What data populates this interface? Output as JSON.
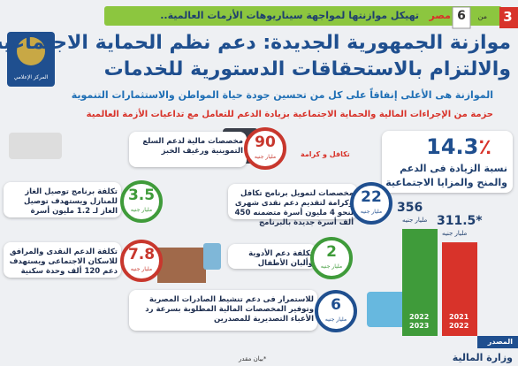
{
  "header": {
    "page": "3",
    "of": "من",
    "total": "6",
    "banner_country": "مصر",
    "banner": "تهيكل موازنتها لمواجهة سيناريوهات الأزمات العالمية..",
    "title_line1": "موازنة الجمهورية الجديدة: دعم نظم الحماية الاجتماعية",
    "title_line2": "والالتزام بالاستحقاقات الدستورية للخدمات",
    "logo": "المركز الإعلامي"
  },
  "subtitles": [
    "الموازنة هى الأعلى إنفاقاً على كل من تحسين جودة حياة المواطن والاستثمارات التنموية",
    "حزمة من الإجراءات المالية والحماية الاجتماعية بزيادة الدعم للتعامل مع تداعيات الأزمة العالمية"
  ],
  "increase": {
    "value": 14.3,
    "unit": "٪",
    "label_line1": "نسبة الزيادة فى الدعم",
    "label_line2": "والمنح والمزايا الاجتماعية"
  },
  "budget_bars": [
    {
      "value": 356,
      "unit": "مليار جنيه",
      "years": [
        "2022",
        "2023"
      ],
      "color": "#3f9b3a"
    },
    {
      "value": 311.5,
      "value_label": "311.5*",
      "unit": "مليار جنيه",
      "years": [
        "2021",
        "2022"
      ],
      "color": "#d8332a"
    }
  ],
  "items": [
    {
      "value": 90,
      "unit": "مليار جنيه",
      "text": "مخصصات مالية لدعم السلع التموينية ورغيف الخبز",
      "color": "#c8372d"
    },
    {
      "value": 22,
      "unit": "مليار جنيه",
      "text": "مخصصات لتمويل برنامج تكافل وكرامة لتقديم دعم نقدى شهرى لنحو 4 مليون أسرة متضمنه 450 ألف أسرة جديدة بالبرنامج",
      "color": "#1f4f8f"
    },
    {
      "value": 2,
      "unit": "مليار جنيه",
      "text": "تكلفة دعم الأدوية وألبان الأطفال",
      "color": "#3f9b3a"
    },
    {
      "value": 6,
      "unit": "مليار جنيه",
      "text": "للاستمرار فى دعم تنشيط الصادرات المصرية وتوفير المخصصات المالية المطلوبة بسرعة رد الأعباء التصديرية للمصدرين",
      "color": "#1f4f8f"
    },
    {
      "value": 3.5,
      "unit": "مليار جنيه",
      "text": "تكلفة برنامج توصيل الغاز للمنازل ويستهدف توصيل الغاز لـ 1.2 مليون أسرة",
      "color": "#3f9b3a"
    },
    {
      "value": 7.8,
      "unit": "مليار جنيه",
      "text": "تكلفة الدعم النقدى والمرافق للاسكان الاجتماعى ويستهدف دعم 120 ألف وحدة سكنية",
      "color": "#c8372d"
    }
  ],
  "program_logo": "تكافل و كرامة",
  "footer": {
    "source_label": "المصدر",
    "source": "وزارة المالية",
    "note": "*بيان مقدر"
  }
}
